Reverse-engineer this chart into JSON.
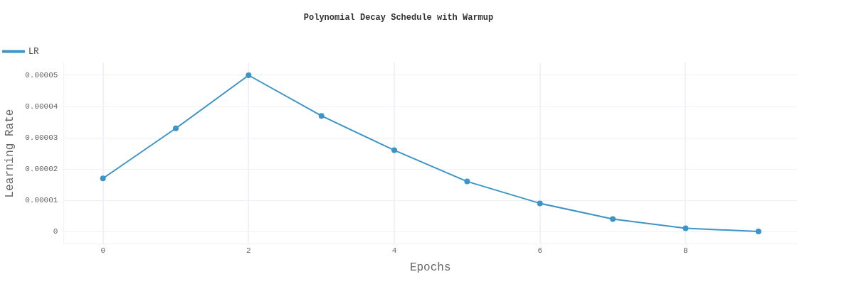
{
  "chart_data": {
    "type": "line",
    "title": "Polynomial Decay Schedule with Warmup",
    "xlabel": "Epochs",
    "ylabel": "Learning Rate",
    "x": [
      0,
      1,
      2,
      3,
      4,
      5,
      6,
      7,
      8,
      9
    ],
    "series": [
      {
        "name": "LR",
        "color": "#3d94c6",
        "values": [
          1.7e-05,
          3.3e-05,
          5e-05,
          3.7e-05,
          2.6e-05,
          1.6e-05,
          9e-06,
          4e-06,
          1e-06,
          0
        ]
      }
    ],
    "xlim": [
      -0.54,
      9.53
    ],
    "xticks": [
      0,
      2,
      4,
      6,
      8
    ],
    "ylim": [
      -4e-06,
      5.4e-05
    ],
    "yticks": [
      {
        "value": 0,
        "label": "0"
      },
      {
        "value": 1e-05,
        "label": "0.00001"
      },
      {
        "value": 2e-05,
        "label": "0.00002"
      },
      {
        "value": 3e-05,
        "label": "0.00003"
      },
      {
        "value": 4e-05,
        "label": "0.00004"
      },
      {
        "value": 5e-05,
        "label": "0.00005"
      }
    ],
    "grid": true,
    "legend": "top left",
    "marker": "circle",
    "line_style": "solid"
  }
}
